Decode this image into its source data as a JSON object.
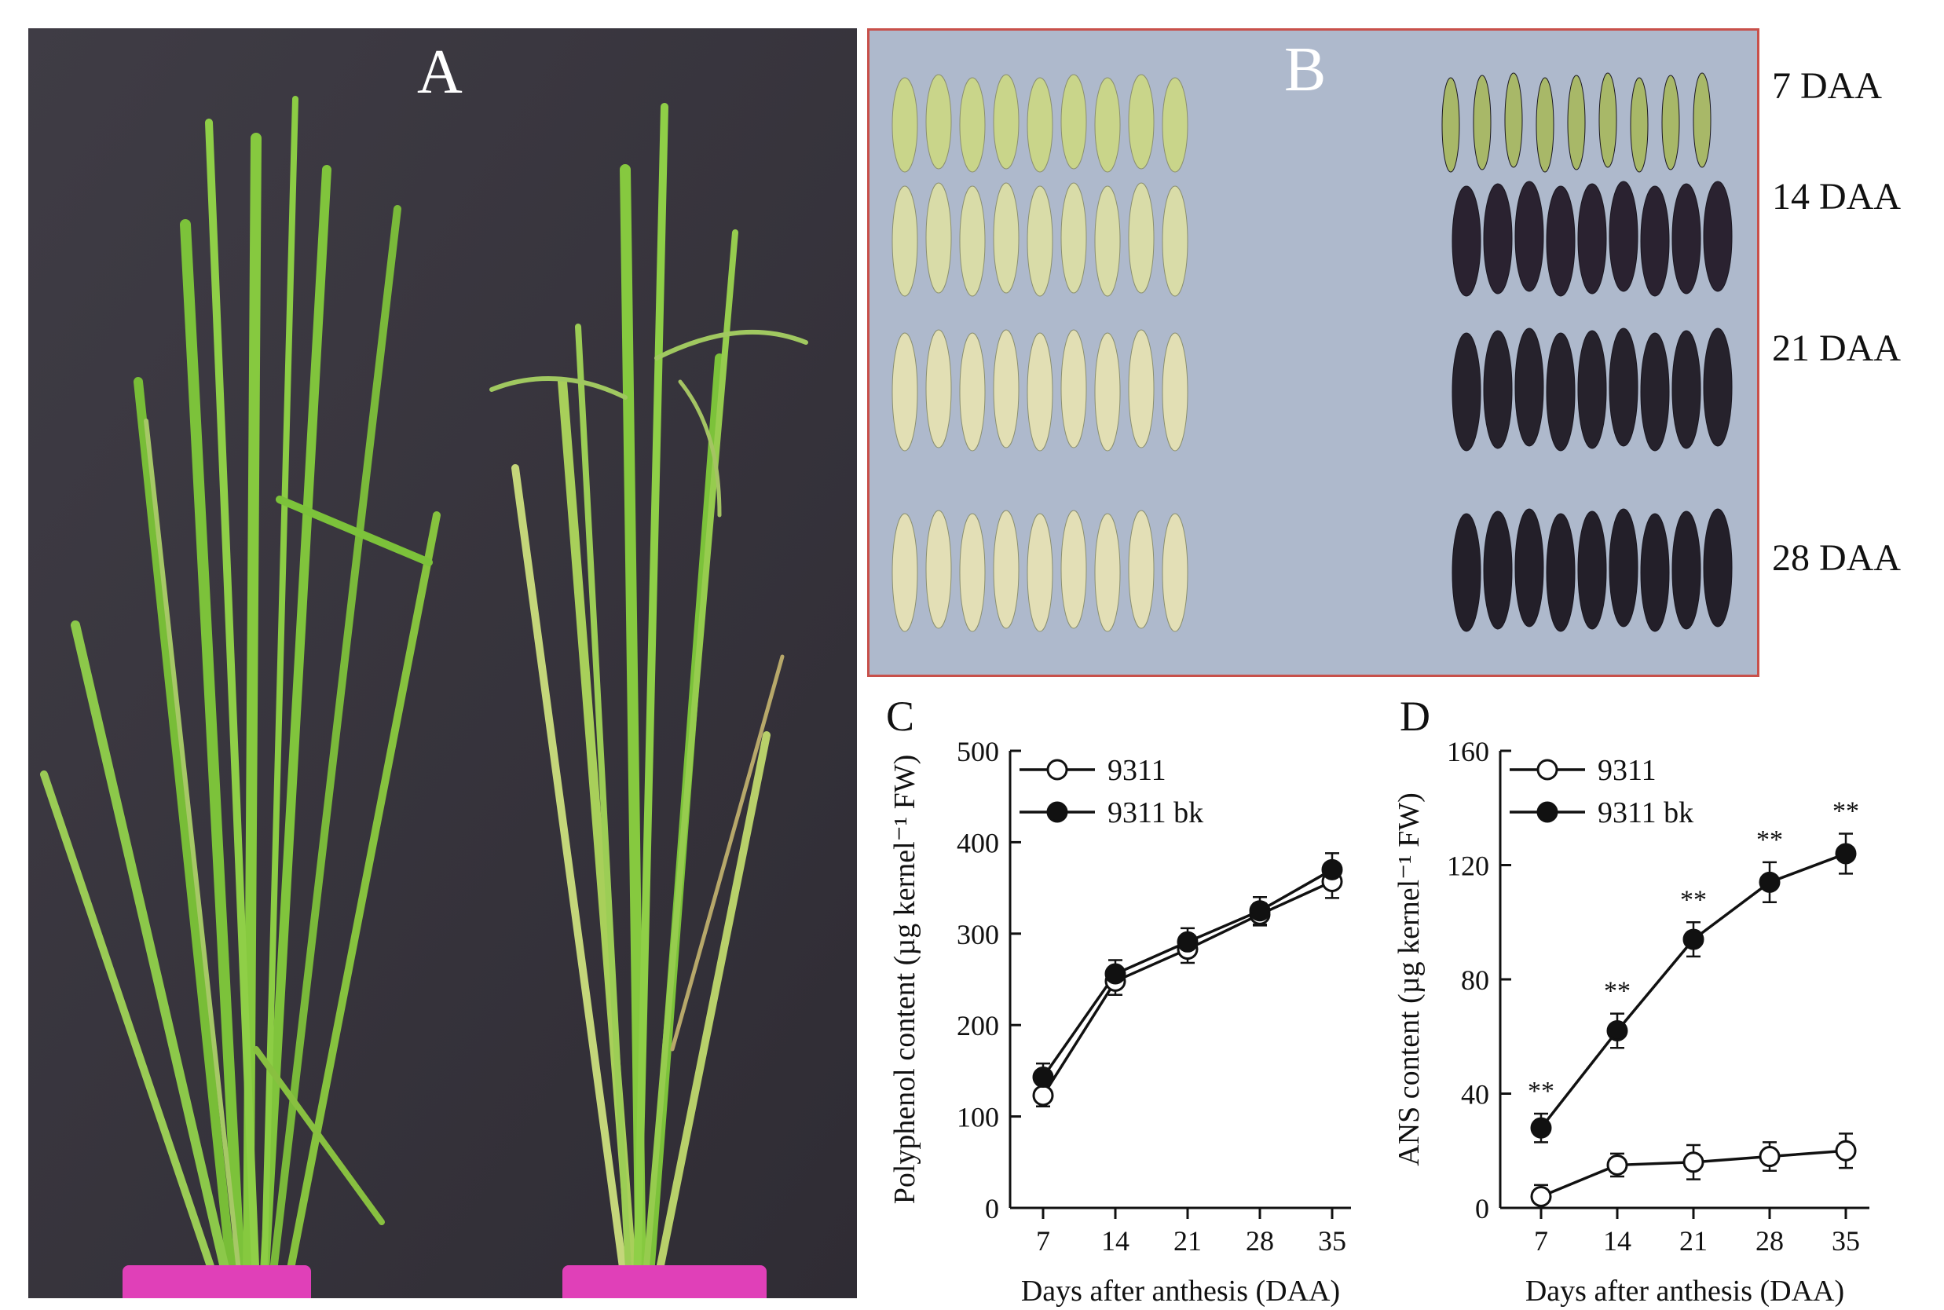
{
  "panel_a": {
    "label": "A"
  },
  "panel_b": {
    "label": "B",
    "rows": [
      {
        "label": "7 DAA",
        "left_color": "#c9d58a",
        "right_color": "#a8b868"
      },
      {
        "label": "14 DAA",
        "left_color": "#d9dca8",
        "right_color": "#2a2230"
      },
      {
        "label": "21 DAA",
        "left_color": "#e2dfb4",
        "right_color": "#26222c"
      },
      {
        "label": "28 DAA",
        "left_color": "#e3dfb6",
        "right_color": "#231f29"
      }
    ]
  },
  "colors": {
    "background_dark": "#3a3740",
    "leaf_green": "#7fbf3a",
    "pot_pink": "#e040b8",
    "panel_b_border": "#c8504a"
  },
  "chart_data": [
    {
      "label": "C",
      "type": "line",
      "xlabel": "Days after anthesis (DAA)",
      "ylabel": "Polyphenol content (µg kernel⁻¹ FW)",
      "x": [
        7,
        14,
        21,
        28,
        35
      ],
      "ylim": [
        0,
        500
      ],
      "yticks": [
        0,
        100,
        200,
        300,
        400,
        500
      ],
      "legend_position": "top-left",
      "series": [
        {
          "name": "9311",
          "marker": "open-circle",
          "values": [
            123,
            248,
            283,
            321,
            357
          ],
          "errors": [
            12,
            15,
            15,
            12,
            18
          ]
        },
        {
          "name": "9311 bk",
          "marker": "filled-circle",
          "values": [
            143,
            256,
            291,
            325,
            370
          ],
          "errors": [
            15,
            15,
            15,
            15,
            18
          ]
        }
      ]
    },
    {
      "label": "D",
      "type": "line",
      "xlabel": "Days after anthesis (DAA)",
      "ylabel": "ANS content (µg kernel⁻¹ FW)",
      "x": [
        7,
        14,
        21,
        28,
        35
      ],
      "ylim": [
        0,
        160
      ],
      "yticks": [
        0,
        40,
        80,
        120,
        160
      ],
      "legend_position": "top-left",
      "annotations": [
        "**",
        "**",
        "**",
        "**",
        "**"
      ],
      "series": [
        {
          "name": "9311",
          "marker": "open-circle",
          "values": [
            4,
            15,
            16,
            18,
            20
          ],
          "errors": [
            4,
            4,
            6,
            5,
            6
          ]
        },
        {
          "name": "9311 bk",
          "marker": "filled-circle",
          "values": [
            28,
            62,
            94,
            114,
            124
          ],
          "errors": [
            5,
            6,
            6,
            7,
            7
          ]
        }
      ]
    }
  ]
}
